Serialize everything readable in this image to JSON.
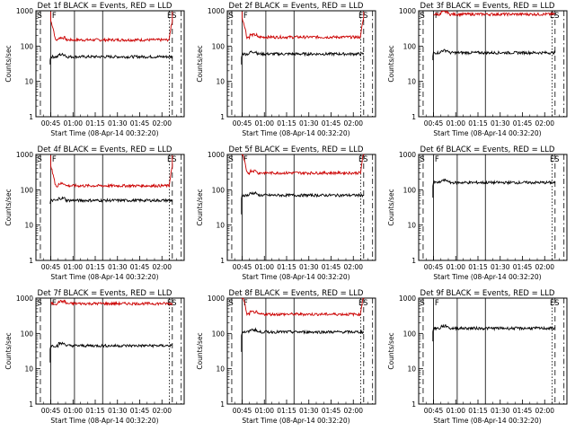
{
  "chart_data": [
    {
      "type": "line",
      "title": "Det 1f BLACK = Events, RED = LLD",
      "xlabel": "Start Time (08-Apr-14 00:32:20)",
      "ylabel": "Counts/sec",
      "xticks": [
        "00:45",
        "01:00",
        "01:15",
        "01:30",
        "01:45",
        "02:00"
      ],
      "yticks": [
        "1",
        "10",
        "100",
        "1000"
      ],
      "xlim": [
        35,
        135
      ],
      "ylim": [
        1,
        1000
      ],
      "yscale": "log",
      "x_start": 45,
      "x_end": 127,
      "markers": [
        "S",
        "F",
        "E",
        "S"
      ],
      "series": [
        {
          "color": "#cc0000",
          "level": 150,
          "edge_rise": true
        },
        {
          "color": "#000000",
          "level": 50,
          "start": 30
        }
      ]
    },
    {
      "type": "line",
      "title": "Det 2f BLACK = Events, RED = LLD",
      "xlabel": "Start Time (08-Apr-14 00:32:20)",
      "ylabel": "Counts/sec",
      "xticks": [
        "00:45",
        "01:00",
        "01:15",
        "01:30",
        "01:45",
        "02:00"
      ],
      "yticks": [
        "1",
        "10",
        "100",
        "1000"
      ],
      "xlim": [
        35,
        135
      ],
      "ylim": [
        1,
        1000
      ],
      "yscale": "log",
      "x_start": 45,
      "x_end": 127,
      "markers": [
        "S",
        "F",
        "E",
        "S"
      ],
      "series": [
        {
          "color": "#cc0000",
          "level": 180,
          "edge_rise": true
        },
        {
          "color": "#000000",
          "level": 60,
          "start": 30
        }
      ]
    },
    {
      "type": "line",
      "title": "Det 3f BLACK = Events, RED = LLD",
      "xlabel": "Start Time (08-Apr-14 00:32:20)",
      "ylabel": "Counts/sec",
      "xticks": [
        "00:45",
        "01:00",
        "01:15",
        "01:30",
        "01:45",
        "02:00"
      ],
      "yticks": [
        "1",
        "10",
        "100",
        "1000"
      ],
      "xlim": [
        35,
        135
      ],
      "ylim": [
        1,
        1000
      ],
      "yscale": "log",
      "x_start": 45,
      "x_end": 127,
      "markers": [
        "S",
        "F",
        "E",
        "S"
      ],
      "series": [
        {
          "color": "#cc0000",
          "level": 800,
          "edge_rise": false
        },
        {
          "color": "#000000",
          "level": 65,
          "start": 40
        }
      ]
    },
    {
      "type": "line",
      "title": "Det 4f BLACK = Events, RED = LLD",
      "xlabel": "Start Time (08-Apr-14 00:32:20)",
      "ylabel": "Counts/sec",
      "xticks": [
        "00:45",
        "01:00",
        "01:15",
        "01:30",
        "01:45",
        "02:00"
      ],
      "yticks": [
        "1",
        "10",
        "100",
        "1000"
      ],
      "xlim": [
        35,
        135
      ],
      "ylim": [
        1,
        1000
      ],
      "yscale": "log",
      "x_start": 45,
      "x_end": 127,
      "markers": [
        "S",
        "F",
        "E",
        "S"
      ],
      "series": [
        {
          "color": "#cc0000",
          "level": 130,
          "edge_rise": true
        },
        {
          "color": "#000000",
          "level": 50,
          "start": 40
        }
      ]
    },
    {
      "type": "line",
      "title": "Det 5f BLACK = Events, RED = LLD",
      "xlabel": "Start Time (08-Apr-14 00:32:20)",
      "ylabel": "Counts/sec",
      "xticks": [
        "00:45",
        "01:00",
        "01:15",
        "01:30",
        "01:45",
        "02:00"
      ],
      "yticks": [
        "1",
        "10",
        "100",
        "1000"
      ],
      "xlim": [
        35,
        135
      ],
      "ylim": [
        1,
        1000
      ],
      "yscale": "log",
      "x_start": 45,
      "x_end": 127,
      "markers": [
        "S",
        "F",
        "E",
        "S"
      ],
      "series": [
        {
          "color": "#cc0000",
          "level": 300,
          "edge_rise": true
        },
        {
          "color": "#000000",
          "level": 70,
          "start": 20
        }
      ]
    },
    {
      "type": "line",
      "title": "Det 6f BLACK = Events, RED = LLD",
      "xlabel": "Start Time (08-Apr-14 00:32:20)",
      "ylabel": "Counts/sec",
      "xticks": [
        "00:45",
        "01:00",
        "01:15",
        "01:30",
        "01:45",
        "02:00"
      ],
      "yticks": [
        "1",
        "10",
        "100",
        "1000"
      ],
      "xlim": [
        35,
        135
      ],
      "ylim": [
        1,
        1000
      ],
      "yscale": "log",
      "x_start": 45,
      "x_end": 127,
      "markers": [
        "S",
        "F",
        "E",
        "S"
      ],
      "series": [
        {
          "color": "#000000",
          "level": 160,
          "start": 60
        }
      ]
    },
    {
      "type": "line",
      "title": "Det 7f BLACK = Events, RED = LLD",
      "xlabel": "Start Time (08-Apr-14 00:32:20)",
      "ylabel": "Counts/sec",
      "xticks": [
        "00:45",
        "01:00",
        "01:15",
        "01:30",
        "01:45",
        "02:00"
      ],
      "yticks": [
        "1",
        "10",
        "100",
        "1000"
      ],
      "xlim": [
        35,
        135
      ],
      "ylim": [
        1,
        1000
      ],
      "yscale": "log",
      "x_start": 45,
      "x_end": 127,
      "markers": [
        "S",
        "F",
        "E",
        "S"
      ],
      "series": [
        {
          "color": "#cc0000",
          "level": 700,
          "edge_rise": false
        },
        {
          "color": "#000000",
          "level": 45,
          "start": 15
        }
      ]
    },
    {
      "type": "line",
      "title": "Det 8f BLACK = Events, RED = LLD",
      "xlabel": "Start Time (08-Apr-14 00:32:20)",
      "ylabel": "Counts/sec",
      "xticks": [
        "00:45",
        "01:00",
        "01:15",
        "01:30",
        "01:45",
        "02:00"
      ],
      "yticks": [
        "1",
        "10",
        "100",
        "1000"
      ],
      "xlim": [
        35,
        135
      ],
      "ylim": [
        1,
        1000
      ],
      "yscale": "log",
      "x_start": 45,
      "x_end": 127,
      "markers": [
        "S",
        "F",
        "E",
        "S"
      ],
      "series": [
        {
          "color": "#cc0000",
          "level": 350,
          "edge_rise": true
        },
        {
          "color": "#000000",
          "level": 110,
          "start": 30
        }
      ]
    },
    {
      "type": "line",
      "title": "Det 9f BLACK = Events, RED = LLD",
      "xlabel": "Start Time (08-Apr-14 00:32:20)",
      "ylabel": "Counts/sec",
      "xticks": [
        "00:45",
        "01:00",
        "01:15",
        "01:30",
        "01:45",
        "02:00"
      ],
      "yticks": [
        "1",
        "10",
        "100",
        "1000"
      ],
      "xlim": [
        35,
        135
      ],
      "ylim": [
        1,
        1000
      ],
      "yscale": "log",
      "x_start": 45,
      "x_end": 127,
      "markers": [
        "S",
        "F",
        "E",
        "S"
      ],
      "series": [
        {
          "color": "#000000",
          "level": 140,
          "start": 60
        }
      ]
    }
  ]
}
